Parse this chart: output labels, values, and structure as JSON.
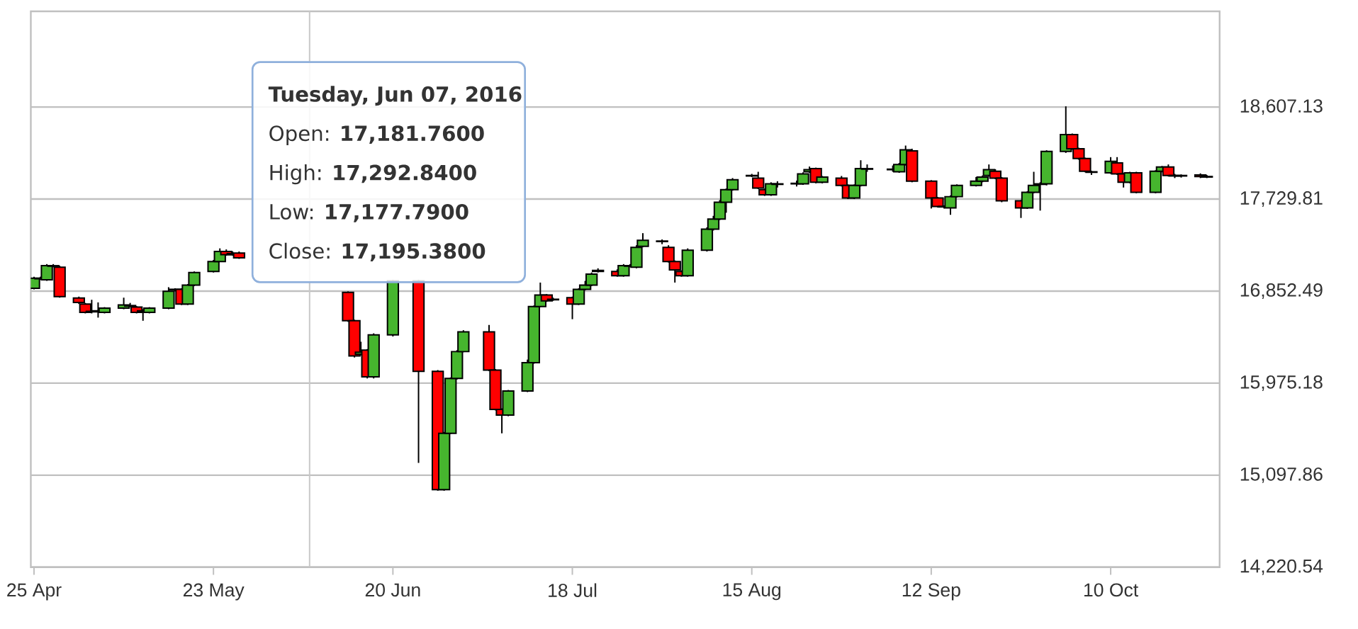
{
  "chart_data": {
    "type": "candlestick",
    "x": [
      "2016-04-25",
      "2016-04-26",
      "2016-04-27",
      "2016-04-28",
      "2016-04-29",
      "2016-05-02",
      "2016-05-03",
      "2016-05-04",
      "2016-05-05",
      "2016-05-06",
      "2016-05-09",
      "2016-05-10",
      "2016-05-11",
      "2016-05-12",
      "2016-05-13",
      "2016-05-16",
      "2016-05-17",
      "2016-05-18",
      "2016-05-19",
      "2016-05-20",
      "2016-05-23",
      "2016-05-24",
      "2016-05-25",
      "2016-05-26",
      "2016-05-27",
      "2016-06-13",
      "2016-06-14",
      "2016-06-15",
      "2016-06-16",
      "2016-06-17",
      "2016-06-20",
      "2016-06-24",
      "2016-06-27",
      "2016-06-28",
      "2016-06-29",
      "2016-06-30",
      "2016-07-01",
      "2016-07-05",
      "2016-07-06",
      "2016-07-07",
      "2016-07-08",
      "2016-07-11",
      "2016-07-12",
      "2016-07-13",
      "2016-07-14",
      "2016-07-15",
      "2016-07-18",
      "2016-07-19",
      "2016-07-20",
      "2016-07-21",
      "2016-07-22",
      "2016-07-25",
      "2016-07-26",
      "2016-07-27",
      "2016-07-28",
      "2016-07-29",
      "2016-08-01",
      "2016-08-02",
      "2016-08-03",
      "2016-08-04",
      "2016-08-05",
      "2016-08-08",
      "2016-08-09",
      "2016-08-10",
      "2016-08-11",
      "2016-08-12",
      "2016-08-15",
      "2016-08-16",
      "2016-08-17",
      "2016-08-18",
      "2016-08-19",
      "2016-08-22",
      "2016-08-23",
      "2016-08-24",
      "2016-08-25",
      "2016-08-26",
      "2016-08-29",
      "2016-08-30",
      "2016-08-31",
      "2016-09-01",
      "2016-09-02",
      "2016-09-06",
      "2016-09-07",
      "2016-09-08",
      "2016-09-09",
      "2016-09-12",
      "2016-09-13",
      "2016-09-14",
      "2016-09-15",
      "2016-09-16",
      "2016-09-19",
      "2016-09-20",
      "2016-09-21",
      "2016-09-22",
      "2016-09-23",
      "2016-09-26",
      "2016-09-27",
      "2016-09-28",
      "2016-09-29",
      "2016-09-30",
      "2016-10-03",
      "2016-10-04",
      "2016-10-05",
      "2016-10-06",
      "2016-10-07",
      "2016-10-10",
      "2016-10-11",
      "2016-10-12",
      "2016-10-13",
      "2016-10-14",
      "2016-10-17",
      "2016-10-18",
      "2016-10-19",
      "2016-10-20",
      "2016-10-21",
      "2016-10-24",
      "2016-10-25"
    ],
    "ohlc": [
      [
        16880,
        16990,
        16870,
        16975
      ],
      [
        16975,
        16990,
        16960,
        16970
      ],
      [
        16960,
        17110,
        16950,
        17095
      ],
      [
        17095,
        17110,
        17080,
        17090
      ],
      [
        17080,
        17095,
        16790,
        16800
      ],
      [
        16786,
        16800,
        16730,
        16745
      ],
      [
        16730,
        16740,
        16640,
        16650
      ],
      [
        16660,
        16770,
        16640,
        16655
      ],
      [
        16660,
        16745,
        16600,
        16665
      ],
      [
        16650,
        16700,
        16640,
        16690
      ],
      [
        16690,
        16790,
        16680,
        16720
      ],
      [
        16715,
        16740,
        16700,
        16710
      ],
      [
        16700,
        16710,
        16640,
        16650
      ],
      [
        16660,
        16680,
        16570,
        16665
      ],
      [
        16650,
        16700,
        16640,
        16690
      ],
      [
        16690,
        16890,
        16680,
        16850
      ],
      [
        16870,
        16880,
        16850,
        16865
      ],
      [
        16870,
        16880,
        16720,
        16730
      ],
      [
        16730,
        16920,
        16720,
        16910
      ],
      [
        16910,
        17040,
        16900,
        17030
      ],
      [
        17040,
        17150,
        17030,
        17135
      ],
      [
        17135,
        17260,
        17130,
        17230
      ],
      [
        17230,
        17250,
        17190,
        17200
      ],
      [
        17200,
        17230,
        17190,
        17210
      ],
      [
        17215,
        17230,
        17160,
        17170
      ],
      [
        16840,
        16850,
        16560,
        16570
      ],
      [
        16570,
        16580,
        16220,
        16235
      ],
      [
        16250,
        16370,
        16240,
        16270
      ],
      [
        16290,
        16300,
        16020,
        16035
      ],
      [
        16035,
        16450,
        16020,
        16435
      ],
      [
        16435,
        16960,
        16420,
        16950
      ],
      [
        16950,
        16960,
        15215,
        16088
      ],
      [
        16088,
        16100,
        14950,
        14960
      ],
      [
        14960,
        15510,
        14950,
        15497
      ],
      [
        15497,
        16030,
        15490,
        16020
      ],
      [
        16020,
        16290,
        16010,
        16276
      ],
      [
        16276,
        16480,
        16270,
        16465
      ],
      [
        16465,
        16530,
        16090,
        16100
      ],
      [
        16100,
        16110,
        15715,
        15725
      ],
      [
        15725,
        15735,
        15497,
        15670
      ],
      [
        15670,
        15910,
        15660,
        15900
      ],
      [
        15900,
        16200,
        15890,
        16170
      ],
      [
        16170,
        16715,
        16160,
        16705
      ],
      [
        16705,
        16934,
        16700,
        16815
      ],
      [
        16815,
        16825,
        16750,
        16760
      ],
      [
        16770,
        16790,
        16760,
        16775
      ],
      [
        16790,
        16800,
        16585,
        16730
      ],
      [
        16730,
        16880,
        16720,
        16870
      ],
      [
        16870,
        16950,
        16860,
        16910
      ],
      [
        16910,
        17030,
        16900,
        17015
      ],
      [
        17040,
        17070,
        17030,
        17050
      ],
      [
        17040,
        17060,
        16990,
        17000
      ],
      [
        17000,
        17110,
        16990,
        17095
      ],
      [
        17095,
        17110,
        17080,
        17090
      ],
      [
        17080,
        17290,
        17070,
        17270
      ],
      [
        17280,
        17405,
        17270,
        17337
      ],
      [
        17330,
        17345,
        17300,
        17325
      ],
      [
        17270,
        17290,
        17125,
        17135
      ],
      [
        17135,
        17145,
        16934,
        17055
      ],
      [
        17040,
        17050,
        16990,
        17000
      ],
      [
        17000,
        17260,
        16990,
        17243
      ],
      [
        17243,
        17460,
        17230,
        17444
      ],
      [
        17444,
        17570,
        17430,
        17540
      ],
      [
        17540,
        17720,
        17530,
        17700
      ],
      [
        17700,
        17830,
        17600,
        17820
      ],
      [
        17820,
        17930,
        17810,
        17915
      ],
      [
        17955,
        17970,
        17940,
        17950
      ],
      [
        17930,
        17990,
        17825,
        17835
      ],
      [
        17820,
        17830,
        17760,
        17770
      ],
      [
        17770,
        17890,
        17760,
        17875
      ],
      [
        17875,
        17900,
        17840,
        17870
      ],
      [
        17880,
        17905,
        17850,
        17875
      ],
      [
        17875,
        17985,
        17865,
        17970
      ],
      [
        17990,
        18040,
        17980,
        18010
      ],
      [
        18020,
        18030,
        17880,
        17890
      ],
      [
        17890,
        17950,
        17880,
        17940
      ],
      [
        17930,
        17950,
        17850,
        17860
      ],
      [
        17860,
        17870,
        17730,
        17740
      ],
      [
        17740,
        17870,
        17730,
        17860
      ],
      [
        17860,
        18100,
        17850,
        18020
      ],
      [
        18020,
        18060,
        17990,
        18015
      ],
      [
        18010,
        18050,
        17990,
        18015
      ],
      [
        17990,
        18075,
        17980,
        18060
      ],
      [
        18060,
        18240,
        18050,
        18200
      ],
      [
        18190,
        18210,
        17890,
        17900
      ],
      [
        17900,
        17910,
        17640,
        17740
      ],
      [
        17740,
        17750,
        17650,
        17660
      ],
      [
        17660,
        17670,
        17640,
        17655
      ],
      [
        17646,
        17765,
        17580,
        17753
      ],
      [
        17753,
        17870,
        17745,
        17860
      ],
      [
        17860,
        17940,
        17850,
        17900
      ],
      [
        17900,
        17955,
        17890,
        17940
      ],
      [
        17955,
        18060,
        17945,
        18010
      ],
      [
        17995,
        18015,
        17920,
        17930
      ],
      [
        17930,
        17940,
        17700,
        17713
      ],
      [
        17713,
        17720,
        17550,
        17646
      ],
      [
        17646,
        17805,
        17636,
        17795
      ],
      [
        17795,
        17990,
        17785,
        17860
      ],
      [
        17875,
        17890,
        17620,
        17870
      ],
      [
        17875,
        18195,
        17860,
        18184
      ],
      [
        18184,
        18614,
        18170,
        18345
      ],
      [
        18345,
        18355,
        18200,
        18210
      ],
      [
        18210,
        18220,
        18105,
        18116
      ],
      [
        18116,
        18125,
        17985,
        17995
      ],
      [
        17990,
        18000,
        17960,
        17985
      ],
      [
        17980,
        18130,
        17970,
        18090
      ],
      [
        18075,
        18130,
        17960,
        17970
      ],
      [
        17970,
        17980,
        17840,
        17890
      ],
      [
        17890,
        17990,
        17880,
        17980
      ],
      [
        17980,
        17990,
        17785,
        17795
      ],
      [
        17795,
        18005,
        17785,
        17995
      ],
      [
        17995,
        18045,
        17985,
        18035
      ],
      [
        18035,
        18060,
        17945,
        17955
      ],
      [
        17955,
        17970,
        17930,
        17950
      ],
      [
        17950,
        17965,
        17935,
        17955
      ],
      [
        17960,
        17975,
        17930,
        17945
      ],
      [
        17945,
        17960,
        17930,
        17940
      ]
    ],
    "colors": [
      "#46b52e",
      "#ff0000",
      "#46b52e",
      "#ff0000",
      "#ff0000",
      "#ff0000",
      "#ff0000",
      "#ff0000",
      "#46b52e",
      "#46b52e",
      "#46b52e",
      "#ff0000",
      "#ff0000",
      "#46b52e",
      "#46b52e",
      "#46b52e",
      "#ff0000",
      "#ff0000",
      "#46b52e",
      "#46b52e",
      "#46b52e",
      "#46b52e",
      "#ff0000",
      "#46b52e",
      "#ff0000",
      "#ff0000",
      "#ff0000",
      "#46b52e",
      "#ff0000",
      "#46b52e",
      "#46b52e",
      "#ff0000",
      "#ff0000",
      "#46b52e",
      "#46b52e",
      "#46b52e",
      "#46b52e",
      "#ff0000",
      "#ff0000",
      "#ff0000",
      "#46b52e",
      "#46b52e",
      "#46b52e",
      "#46b52e",
      "#ff0000",
      "#46b52e",
      "#ff0000",
      "#46b52e",
      "#46b52e",
      "#46b52e",
      "#46b52e",
      "#ff0000",
      "#46b52e",
      "#ff0000",
      "#46b52e",
      "#46b52e",
      "#ff0000",
      "#ff0000",
      "#ff0000",
      "#ff0000",
      "#46b52e",
      "#46b52e",
      "#46b52e",
      "#46b52e",
      "#46b52e",
      "#46b52e",
      "#ff0000",
      "#ff0000",
      "#ff0000",
      "#46b52e",
      "#ff0000",
      "#ff0000",
      "#46b52e",
      "#46b52e",
      "#ff0000",
      "#46b52e",
      "#ff0000",
      "#ff0000",
      "#46b52e",
      "#46b52e",
      "#ff0000",
      "#46b52e",
      "#46b52e",
      "#46b52e",
      "#ff0000",
      "#ff0000",
      "#ff0000",
      "#ff0000",
      "#46b52e",
      "#46b52e",
      "#46b52e",
      "#46b52e",
      "#46b52e",
      "#ff0000",
      "#ff0000",
      "#ff0000",
      "#46b52e",
      "#46b52e",
      "#ff0000",
      "#46b52e",
      "#46b52e",
      "#ff0000",
      "#ff0000",
      "#ff0000",
      "#ff0000",
      "#46b52e",
      "#ff0000",
      "#ff0000",
      "#46b52e",
      "#ff0000",
      "#46b52e",
      "#46b52e",
      "#ff0000",
      "#ff0000",
      "#46b52e",
      "#ff0000",
      "#ff0000"
    ],
    "xlim": [
      "2016-04-24T12:00",
      "2016-10-27"
    ],
    "xticks": [
      {
        "value": "2016-04-25",
        "label": "25 Apr"
      },
      {
        "value": "2016-05-23",
        "label": "23 May"
      },
      {
        "value": "2016-06-20",
        "label": "20 Jun"
      },
      {
        "value": "2016-07-18",
        "label": "18 Jul"
      },
      {
        "value": "2016-08-15",
        "label": "15 Aug"
      },
      {
        "value": "2016-09-12",
        "label": "12 Sep"
      },
      {
        "value": "2016-10-10",
        "label": "10 Oct"
      }
    ],
    "ylim": [
      14220.54,
      19520
    ],
    "yticks": [
      {
        "value": 14220.54,
        "label": "14,220.54"
      },
      {
        "value": 15097.86,
        "label": "15,097.86"
      },
      {
        "value": 15975.18,
        "label": "15,975.18"
      },
      {
        "value": 16852.49,
        "label": "16,852.49"
      },
      {
        "value": 17729.81,
        "label": "17,729.81"
      },
      {
        "value": 18607.13,
        "label": "18,607.13"
      }
    ],
    "grid": "y",
    "ref_lines": [
      {
        "axis": "x",
        "value": "2016-06-07",
        "color": "#c8c8c8"
      }
    ],
    "annotations": [
      "Tuesday, Jun 07, 2016",
      "Open: **17,181.7600**",
      "High: **17,292.8400**",
      "Low: **17,177.7900**",
      "Close: **17,195.3800**"
    ]
  }
}
